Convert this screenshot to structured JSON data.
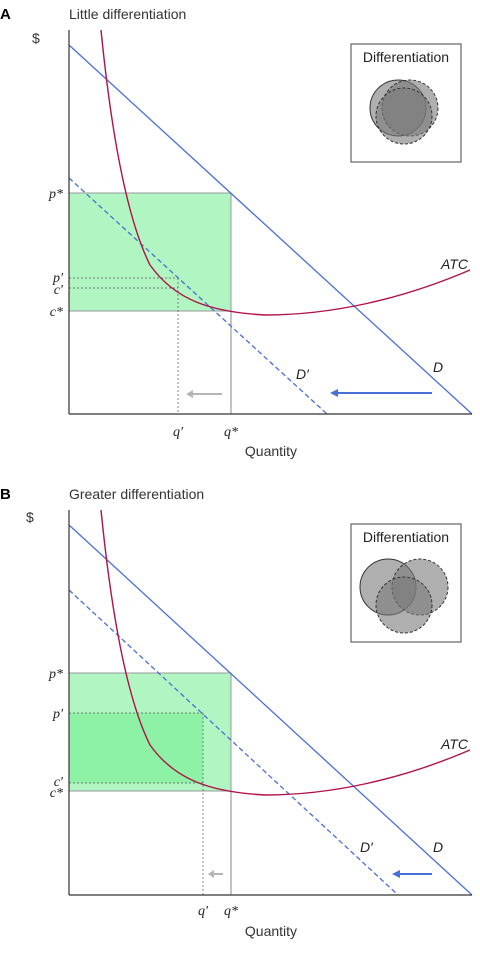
{
  "panels": [
    {
      "letter": "A",
      "title": "Little differentiation",
      "y_axis_label": "$",
      "x_axis_label": "Quantity",
      "price_ticks": {
        "p_star": "p*",
        "p_prime": "p′",
        "c_prime": "c′",
        "c_star": "c*"
      },
      "quantity_ticks": {
        "q_prime": "q′",
        "q_star": "q*"
      },
      "curve_labels": {
        "atc": "ATC",
        "demand": "D",
        "demand_shifted": "D′"
      },
      "inset_title": "Differentiation"
    },
    {
      "letter": "B",
      "title": "Greater differentiation",
      "y_axis_label": "$",
      "x_axis_label": "Quantity",
      "price_ticks": {
        "p_star": "p*",
        "p_prime": "p′",
        "c_prime": "c′",
        "c_star": "c*"
      },
      "quantity_ticks": {
        "q_prime": "q′",
        "q_star": "q*"
      },
      "curve_labels": {
        "atc": "ATC",
        "demand": "D",
        "demand_shifted": "D′"
      },
      "inset_title": "Differentiation"
    }
  ],
  "colors": {
    "demand": "#4a6fd6",
    "atc": "#b0124a",
    "profit_fill": "#7df09a",
    "arrow_grey": "#b5b5b5",
    "circle_fill": "#7a7a7a"
  }
}
